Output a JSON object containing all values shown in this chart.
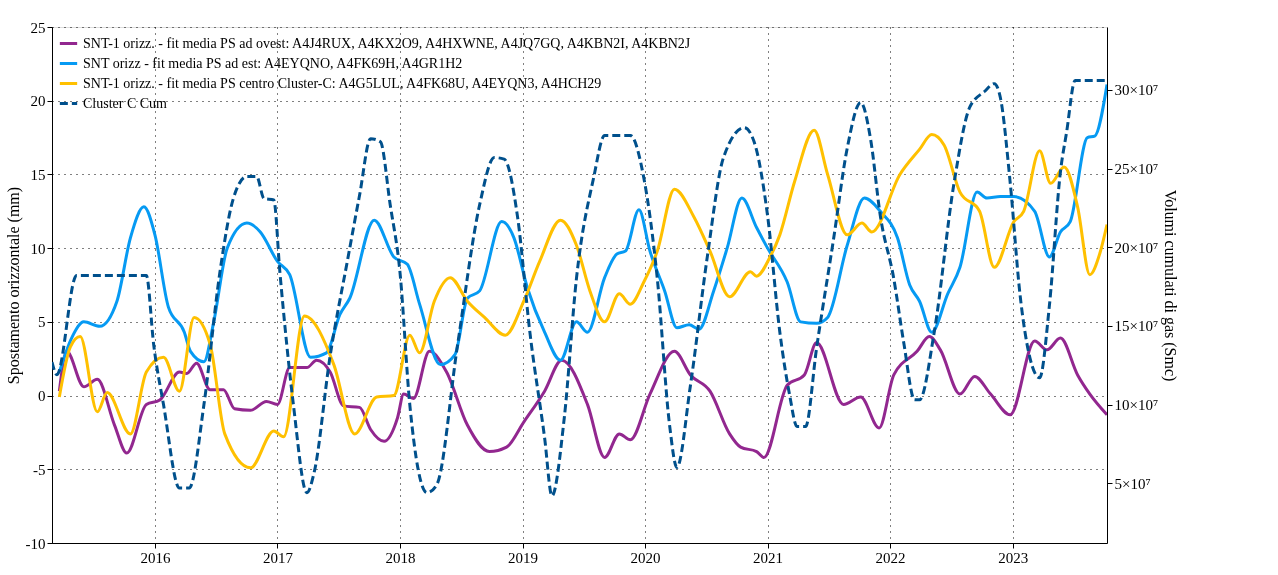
{
  "chart_data": {
    "type": "line",
    "xlim": [
      2015.16,
      2023.77
    ],
    "xticks": [
      2016,
      2017,
      2018,
      2019,
      2020,
      2021,
      2022,
      2023
    ],
    "ylabel": "Spostamento orizzontale (mm)",
    "y2label": "Volumi cumulati di gas (Smc)",
    "ylim": [
      -10,
      25
    ],
    "yticks": [
      -10,
      -5,
      0,
      5,
      10,
      15,
      20,
      25
    ],
    "y2lim": [
      12000000,
      340000000
    ],
    "y2ticks": [
      {
        "value": 50000000,
        "label": "5×10⁷"
      },
      {
        "value": 100000000,
        "label": "10×10⁷"
      },
      {
        "value": 150000000,
        "label": "15×10⁷"
      },
      {
        "value": 200000000,
        "label": "20×10⁷"
      },
      {
        "value": 250000000,
        "label": "25×10⁷"
      },
      {
        "value": 300000000,
        "label": "30×10⁷"
      }
    ],
    "grid": true,
    "legend": "top left",
    "line_style": "solid",
    "series": [
      {
        "name": "SNT-1 orizz. - fit media PS ad ovest: A4J4RUX, A4KX2O9, A4HXWNE, A4JQ7GQ, A4KBN2I, A4KBN2J",
        "color": "#92278f",
        "x": [
          2015.22,
          2015.28,
          2015.42,
          2015.53,
          2015.67,
          2015.77,
          2015.93,
          2016.04,
          2016.2,
          2016.26,
          2016.34,
          2016.45,
          2016.56,
          2016.65,
          2016.78,
          2016.91,
          2017.0,
          2017.1,
          2017.24,
          2017.32,
          2017.43,
          2017.54,
          2017.67,
          2017.76,
          2017.87,
          2017.98,
          2018.03,
          2018.11,
          2018.24,
          2018.38,
          2018.55,
          2018.73,
          2018.87,
          2019.01,
          2019.18,
          2019.32,
          2019.53,
          2019.67,
          2019.79,
          2019.88,
          2020.04,
          2020.24,
          2020.37,
          2020.53,
          2020.69,
          2020.78,
          2020.91,
          2020.97,
          2021.16,
          2021.3,
          2021.4,
          2021.62,
          2021.76,
          2021.91,
          2022.03,
          2022.22,
          2022.32,
          2022.41,
          2022.57,
          2022.69,
          2022.82,
          2022.98,
          2023.18,
          2023.28,
          2023.39,
          2023.53,
          2023.63,
          2023.77
        ],
        "values": [
          0.3,
          3.0,
          0.6,
          1.1,
          -2.0,
          -3.9,
          -0.6,
          -0.3,
          1.6,
          1.5,
          2.2,
          0.4,
          0.4,
          -0.9,
          -1.0,
          -0.4,
          -0.6,
          1.9,
          1.9,
          2.4,
          1.6,
          -0.7,
          -0.8,
          -2.3,
          -3.1,
          -1.5,
          0.1,
          -0.2,
          3.0,
          1.6,
          -2.0,
          -3.8,
          -3.5,
          -1.8,
          0.3,
          2.4,
          -0.6,
          -4.2,
          -2.6,
          -3.0,
          0.1,
          3.0,
          1.4,
          0.3,
          -2.6,
          -3.5,
          -3.8,
          -4.2,
          0.7,
          1.4,
          3.6,
          -0.6,
          -0.1,
          -2.2,
          1.4,
          3.0,
          4.0,
          3.1,
          0.1,
          1.3,
          0.1,
          -1.3,
          3.7,
          3.1,
          3.9,
          1.4,
          0.1,
          -1.3
        ]
      },
      {
        "name": "SNT orizz - fit media PS ad est: A4EYQNO,  A4FK69H, A4GR1H2",
        "color": "#069af3",
        "x": [
          2015.22,
          2015.32,
          2015.42,
          2015.55,
          2015.69,
          2015.8,
          2015.91,
          2016.0,
          2016.11,
          2016.24,
          2016.29,
          2016.4,
          2016.48,
          2016.59,
          2016.75,
          2016.86,
          2017.0,
          2017.1,
          2017.27,
          2017.4,
          2017.51,
          2017.59,
          2017.79,
          2017.95,
          2018.06,
          2018.16,
          2018.33,
          2018.45,
          2018.55,
          2018.65,
          2018.83,
          2018.93,
          2019.04,
          2019.18,
          2019.31,
          2019.44,
          2019.53,
          2019.67,
          2019.77,
          2019.84,
          2019.95,
          2020.04,
          2020.16,
          2020.26,
          2020.36,
          2020.44,
          2020.56,
          2020.67,
          2020.79,
          2020.91,
          2021.0,
          2021.16,
          2021.27,
          2021.4,
          2021.49,
          2021.65,
          2021.79,
          2021.92,
          2022.06,
          2022.16,
          2022.24,
          2022.34,
          2022.47,
          2022.57,
          2022.71,
          2022.79,
          2022.9,
          2023.01,
          2023.18,
          2023.3,
          2023.39,
          2023.47,
          2023.61,
          2023.67,
          2023.77
        ],
        "values": [
          1.6,
          3.9,
          5.0,
          4.7,
          6.4,
          10.7,
          12.8,
          10.9,
          6.0,
          4.3,
          3.0,
          2.3,
          5.0,
          10.0,
          11.7,
          11.1,
          9.1,
          8.2,
          2.6,
          2.9,
          5.5,
          6.6,
          11.9,
          9.4,
          8.9,
          6.2,
          2.1,
          2.8,
          6.6,
          7.1,
          11.8,
          10.7,
          7.3,
          4.3,
          2.4,
          5.0,
          4.3,
          8.0,
          9.6,
          9.8,
          12.6,
          9.8,
          7.1,
          4.6,
          4.8,
          4.5,
          7.1,
          10.0,
          13.4,
          11.4,
          10.0,
          7.7,
          5.0,
          4.9,
          5.3,
          10.2,
          13.4,
          12.5,
          10.7,
          7.5,
          6.4,
          4.3,
          6.9,
          8.7,
          13.8,
          13.4,
          13.5,
          13.5,
          12.5,
          9.4,
          11.1,
          11.8,
          17.5,
          17.6,
          21.1
        ]
      },
      {
        "name": "SNT-1 orizz. - fit media PS centro Cluster-C: A4G5LUL, A4FK68U, A4EYQN3, A4HCH29",
        "color": "#ffc000",
        "x": [
          2015.22,
          2015.31,
          2015.39,
          2015.53,
          2015.61,
          2015.8,
          2015.93,
          2016.07,
          2016.2,
          2016.32,
          2016.45,
          2016.57,
          2016.78,
          2016.97,
          2017.05,
          2017.22,
          2017.46,
          2017.63,
          2017.81,
          2017.95,
          2018.08,
          2018.16,
          2018.28,
          2018.41,
          2018.55,
          2018.69,
          2018.86,
          2019.01,
          2019.14,
          2019.31,
          2019.44,
          2019.55,
          2019.67,
          2019.79,
          2019.88,
          2019.99,
          2020.1,
          2020.24,
          2020.4,
          2020.53,
          2020.69,
          2020.86,
          2020.91,
          2021.02,
          2021.1,
          2021.22,
          2021.38,
          2021.49,
          2021.65,
          2021.77,
          2021.85,
          2022.08,
          2022.24,
          2022.34,
          2022.44,
          2022.57,
          2022.73,
          2022.85,
          2023.01,
          2023.09,
          2023.22,
          2023.31,
          2023.42,
          2023.53,
          2023.63,
          2023.71,
          2023.77
        ],
        "values": [
          -0.1,
          3.3,
          4.0,
          -1.1,
          0.2,
          -2.6,
          1.6,
          2.6,
          0.3,
          5.3,
          3.5,
          -2.6,
          -4.9,
          -2.4,
          -2.8,
          5.4,
          2.1,
          -2.6,
          -0.1,
          0.0,
          4.1,
          2.9,
          6.4,
          8.0,
          6.4,
          5.3,
          4.1,
          6.4,
          9.1,
          11.9,
          10.2,
          7.1,
          5.0,
          6.9,
          6.2,
          7.7,
          9.8,
          14.0,
          12.1,
          9.8,
          6.7,
          8.4,
          8.1,
          9.4,
          10.9,
          14.5,
          18.0,
          15.0,
          10.9,
          11.7,
          11.1,
          15.0,
          16.7,
          17.7,
          17.0,
          13.8,
          12.5,
          8.7,
          11.8,
          12.5,
          16.6,
          14.4,
          15.5,
          12.8,
          8.2,
          9.6,
          11.6
        ]
      },
      {
        "name": "Cluster C Cum",
        "color": "#00508c",
        "axis": "y2",
        "line_style": "dashed",
        "x": [
          2015.16,
          2015.2,
          2015.36,
          2015.93,
          2015.99,
          2016.07,
          2016.2,
          2016.28,
          2016.4,
          2016.53,
          2016.64,
          2016.75,
          2016.83,
          2016.89,
          2016.97,
          2017.02,
          2017.13,
          2017.24,
          2017.3,
          2017.43,
          2017.57,
          2017.67,
          2017.76,
          2017.84,
          2017.92,
          2018.0,
          2018.08,
          2018.22,
          2018.3,
          2018.47,
          2018.65,
          2018.77,
          2018.85,
          2018.96,
          2019.06,
          2019.18,
          2019.24,
          2019.34,
          2019.44,
          2019.58,
          2019.67,
          2019.88,
          2019.99,
          2020.1,
          2020.2,
          2020.26,
          2020.37,
          2020.51,
          2020.64,
          2020.81,
          2020.89,
          2021.0,
          2021.1,
          2021.18,
          2021.24,
          2021.31,
          2021.4,
          2021.54,
          2021.65,
          2021.76,
          2021.84,
          2021.92,
          2022.03,
          2022.11,
          2022.2,
          2022.24,
          2022.36,
          2022.52,
          2022.65,
          2022.77,
          2022.85,
          2022.9,
          2022.98,
          2023.06,
          2023.14,
          2023.22,
          2023.3,
          2023.39,
          2023.44,
          2023.51,
          2023.77
        ],
        "values": [
          127000000,
          119000000,
          182000000,
          182000000,
          138000000,
          100000000,
          47000000,
          47000000,
          100000000,
          184000000,
          231000000,
          245000000,
          245000000,
          231000000,
          230000000,
          184000000,
          100000000,
          44000000,
          57000000,
          131000000,
          191000000,
          233000000,
          269000000,
          267000000,
          227000000,
          184000000,
          100000000,
          44000000,
          49000000,
          138000000,
          227000000,
          257000000,
          256000000,
          219000000,
          146000000,
          79000000,
          42000000,
          91000000,
          180000000,
          244000000,
          271000000,
          271000000,
          244000000,
          180000000,
          87000000,
          60000000,
          112000000,
          195000000,
          257000000,
          276000000,
          267000000,
          220000000,
          146000000,
          106000000,
          86000000,
          86000000,
          136000000,
          206000000,
          263000000,
          292000000,
          269000000,
          220000000,
          180000000,
          140000000,
          103000000,
          103000000,
          146000000,
          240000000,
          289000000,
          299000000,
          304000000,
          295000000,
          241000000,
          170000000,
          130000000,
          117000000,
          163000000,
          248000000,
          273000000,
          306000000,
          306000000
        ]
      }
    ]
  }
}
